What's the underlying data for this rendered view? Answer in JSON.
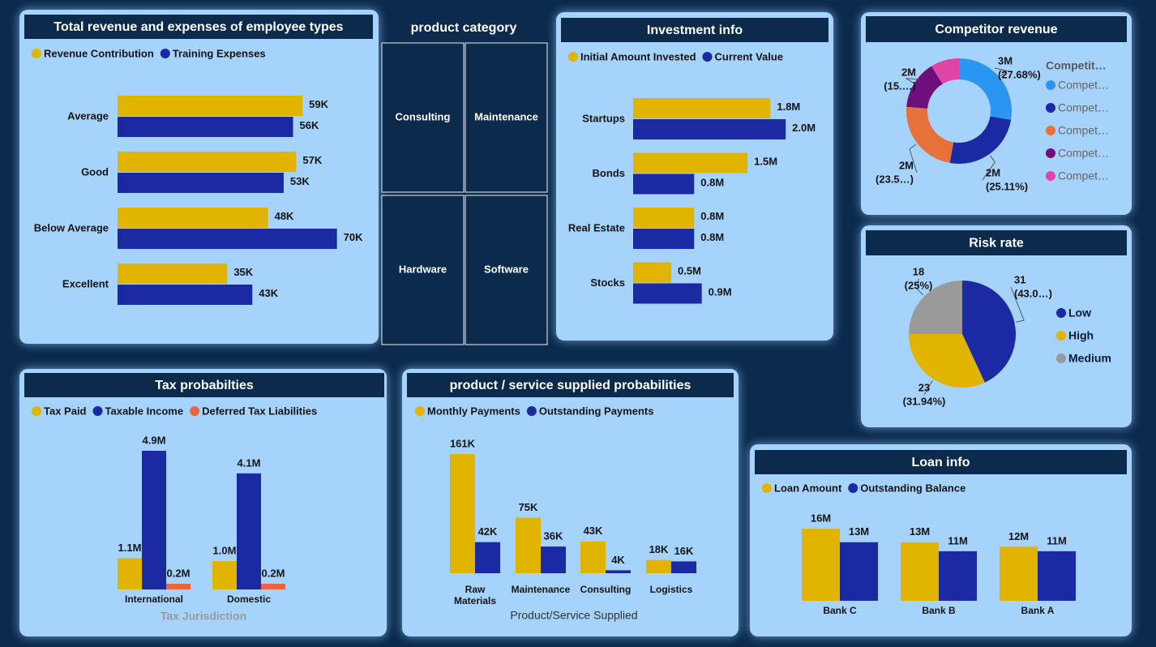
{
  "chart_data": [
    {
      "type": "hbar",
      "title": "Total revenue and expenses of employee types",
      "categories": [
        "Average",
        "Good",
        "Below Average",
        "Excellent"
      ],
      "series": [
        {
          "name": "Revenue Contribution",
          "color": "#e0b400",
          "values": [
            59000,
            57000,
            48000,
            35000
          ],
          "value_labels": [
            "59K",
            "57K",
            "48K",
            "35K"
          ]
        },
        {
          "name": "Training Expenses",
          "color": "#1b2aa3",
          "values": [
            56000,
            53000,
            70000,
            43000
          ],
          "value_labels": [
            "56K",
            "53K",
            "70K",
            "43K"
          ]
        }
      ],
      "xlim": [
        0,
        75000
      ]
    },
    {
      "type": "tiles",
      "title": "product category",
      "categories": [
        "Consulting",
        "Maintenance",
        "Hardware",
        "Software"
      ]
    },
    {
      "type": "hbar",
      "title": "Investment info",
      "categories": [
        "Startups",
        "Bonds",
        "Real Estate",
        "Stocks"
      ],
      "series": [
        {
          "name": "Initial Amount Invested",
          "color": "#e0b400",
          "values": [
            1800000,
            1500000,
            800000,
            500000
          ],
          "value_labels": [
            "1.8M",
            "1.5M",
            "0.8M",
            "0.5M"
          ]
        },
        {
          "name": "Current Value",
          "color": "#1b2aa3",
          "values": [
            2000000,
            800000,
            800000,
            900000
          ],
          "value_labels": [
            "2.0M",
            "0.8M",
            "0.8M",
            "0.9M"
          ]
        }
      ],
      "xlim": [
        0,
        2200000
      ]
    },
    {
      "type": "donut",
      "title": "Competitor revenue",
      "legend_title": "Competit…",
      "categories": [
        "Compet…",
        "Compet…",
        "Compet…",
        "Compet…",
        "Compet…"
      ],
      "values": [
        27.68,
        25.11,
        23.5,
        15,
        8.7
      ],
      "value_labels": [
        [
          "3M",
          "(27.68%)"
        ],
        [
          "2M",
          "(25.11%)"
        ],
        [
          "2M",
          "(23.5…)"
        ],
        [
          "2M",
          "(15.…)"
        ],
        null
      ],
      "colors": [
        "#2b96f2",
        "#1b2aa3",
        "#e8703a",
        "#6e0f7d",
        "#e044a7"
      ]
    },
    {
      "type": "pie",
      "title": "Risk rate",
      "categories": [
        "Low",
        "High",
        "Medium"
      ],
      "values": [
        31,
        23,
        18
      ],
      "value_labels": [
        [
          "31",
          "(43.0…)"
        ],
        [
          "23",
          "(31.94%)"
        ],
        [
          "18",
          "(25%)"
        ]
      ],
      "colors": [
        "#1b2aa3",
        "#e0b400",
        "#9a9a9a"
      ]
    },
    {
      "type": "vbar",
      "title": "Tax probabilties",
      "xlabel": "Tax Jurisdiction",
      "categories": [
        "International",
        "Domestic"
      ],
      "series": [
        {
          "name": "Tax Paid",
          "color": "#e0b400",
          "values": [
            1100000,
            1000000
          ],
          "value_labels": [
            "1.1M",
            "1.0M"
          ]
        },
        {
          "name": "Taxable Income",
          "color": "#1b2aa3",
          "values": [
            4900000,
            4100000
          ],
          "value_labels": [
            "4.9M",
            "4.1M"
          ]
        },
        {
          "name": "Deferred Tax Liabilities",
          "color": "#e8663d",
          "values": [
            200000,
            200000
          ],
          "value_labels": [
            "0.2M",
            "0.2M"
          ]
        }
      ],
      "ylim": [
        0,
        5200000
      ]
    },
    {
      "type": "vbar",
      "title": "product / service supplied probabilities",
      "xlabel": "Product/Service Supplied",
      "categories": [
        "Raw Materials",
        "Maintenance",
        "Consulting",
        "Logistics"
      ],
      "series": [
        {
          "name": "Monthly Payments",
          "color": "#e0b400",
          "values": [
            161000,
            75000,
            43000,
            18000
          ],
          "value_labels": [
            "161K",
            "75K",
            "43K",
            "18K"
          ]
        },
        {
          "name": "Outstanding Payments",
          "color": "#1b2aa3",
          "values": [
            42000,
            36000,
            4000,
            16000
          ],
          "value_labels": [
            "42K",
            "36K",
            "4K",
            "16K"
          ]
        }
      ],
      "ylim": [
        0,
        170000
      ]
    },
    {
      "type": "vbar",
      "title": "Loan info",
      "categories": [
        "Bank C",
        "Bank B",
        "Bank A"
      ],
      "series": [
        {
          "name": "Loan Amount",
          "color": "#e0b400",
          "values": [
            16000000,
            13000000,
            12000000
          ],
          "value_labels": [
            "16M",
            "13M",
            "12M"
          ]
        },
        {
          "name": "Outstanding Balance",
          "color": "#1b2aa3",
          "values": [
            13000000,
            11000000,
            11000000
          ],
          "value_labels": [
            "13M",
            "11M",
            "11M"
          ]
        }
      ],
      "ylim": [
        0,
        18000000
      ]
    }
  ]
}
